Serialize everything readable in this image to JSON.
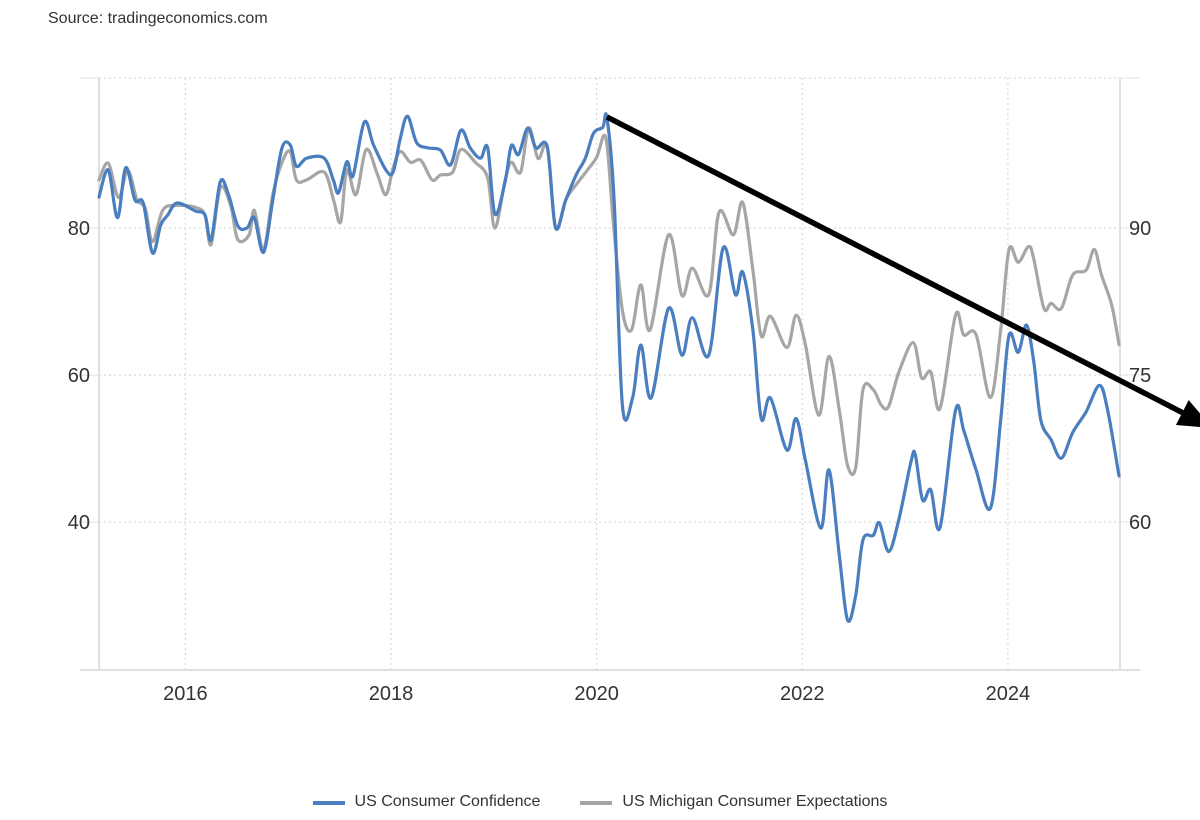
{
  "source": "Source: tradingeconomics.com",
  "chart_data": {
    "type": "line",
    "title": "",
    "xlabel": "",
    "ylabel": "",
    "x_ticks": [
      "2016",
      "2018",
      "2020",
      "2022",
      "2024"
    ],
    "x_tick_values": [
      2016,
      2018,
      2020,
      2022,
      2024
    ],
    "xlim": [
      2015.16,
      2025.09
    ],
    "left_axis": {
      "ticks": [
        "40",
        "60",
        "80"
      ],
      "tick_values": [
        40,
        60,
        80
      ],
      "ylim": [
        19.9,
        100.4
      ]
    },
    "right_axis": {
      "ticks": [
        "60",
        "75",
        "90"
      ],
      "tick_values": [
        60,
        75,
        90
      ],
      "ylim": [
        44.9,
        105.3
      ]
    },
    "grid": true,
    "legend_position": "bottom-center",
    "series": [
      {
        "name": "US Consumer Confidence",
        "axis": "left",
        "color": "#4a7ebf",
        "points": [
          [
            2015.16,
            84.2
          ],
          [
            2015.25,
            87.9
          ],
          [
            2015.34,
            81.4
          ],
          [
            2015.42,
            88.2
          ],
          [
            2015.51,
            83.8
          ],
          [
            2015.59,
            83.4
          ],
          [
            2015.68,
            76.6
          ],
          [
            2015.76,
            80.4
          ],
          [
            2015.83,
            81.8
          ],
          [
            2015.92,
            83.4
          ],
          [
            2016.1,
            82.3
          ],
          [
            2016.19,
            81.8
          ],
          [
            2016.25,
            78.4
          ],
          [
            2016.34,
            86.3
          ],
          [
            2016.42,
            84.5
          ],
          [
            2016.51,
            80.3
          ],
          [
            2016.6,
            80.0
          ],
          [
            2016.67,
            81.4
          ],
          [
            2016.76,
            76.7
          ],
          [
            2016.85,
            83.8
          ],
          [
            2016.94,
            90.9
          ],
          [
            2017.02,
            91.3
          ],
          [
            2017.08,
            88.4
          ],
          [
            2017.18,
            89.5
          ],
          [
            2017.35,
            89.5
          ],
          [
            2017.44,
            86.5
          ],
          [
            2017.49,
            84.8
          ],
          [
            2017.57,
            89.0
          ],
          [
            2017.63,
            87.1
          ],
          [
            2017.74,
            94.4
          ],
          [
            2017.83,
            91.3
          ],
          [
            2017.95,
            87.9
          ],
          [
            2018.02,
            87.6
          ],
          [
            2018.09,
            92.2
          ],
          [
            2018.16,
            95.2
          ],
          [
            2018.25,
            91.6
          ],
          [
            2018.36,
            90.9
          ],
          [
            2018.48,
            90.6
          ],
          [
            2018.58,
            88.6
          ],
          [
            2018.68,
            93.3
          ],
          [
            2018.77,
            90.9
          ],
          [
            2018.87,
            89.5
          ],
          [
            2018.94,
            90.9
          ],
          [
            2019.01,
            81.9
          ],
          [
            2019.11,
            86.3
          ],
          [
            2019.17,
            91.2
          ],
          [
            2019.24,
            90.0
          ],
          [
            2019.33,
            93.6
          ],
          [
            2019.41,
            90.9
          ],
          [
            2019.52,
            91.0
          ],
          [
            2019.6,
            80.1
          ],
          [
            2019.7,
            83.8
          ],
          [
            2019.8,
            87.2
          ],
          [
            2019.89,
            89.5
          ],
          [
            2019.97,
            92.9
          ],
          [
            2020.06,
            93.7
          ],
          [
            2020.1,
            95.0
          ],
          [
            2020.17,
            83.8
          ],
          [
            2020.25,
            55.9
          ],
          [
            2020.35,
            56.9
          ],
          [
            2020.43,
            64.1
          ],
          [
            2020.53,
            56.9
          ],
          [
            2020.7,
            69.1
          ],
          [
            2020.83,
            62.7
          ],
          [
            2020.93,
            67.8
          ],
          [
            2021.09,
            62.7
          ],
          [
            2021.23,
            77.3
          ],
          [
            2021.35,
            70.9
          ],
          [
            2021.42,
            74.0
          ],
          [
            2021.52,
            66.1
          ],
          [
            2021.6,
            54.1
          ],
          [
            2021.69,
            56.9
          ],
          [
            2021.85,
            49.8
          ],
          [
            2021.94,
            54.1
          ],
          [
            2022.03,
            48.4
          ],
          [
            2022.18,
            39.2
          ],
          [
            2022.26,
            47.1
          ],
          [
            2022.36,
            35.5
          ],
          [
            2022.44,
            26.7
          ],
          [
            2022.52,
            30.1
          ],
          [
            2022.59,
            37.6
          ],
          [
            2022.69,
            38.2
          ],
          [
            2022.75,
            39.9
          ],
          [
            2022.84,
            36.0
          ],
          [
            2022.94,
            40.4
          ],
          [
            2023.06,
            48.4
          ],
          [
            2023.1,
            49.1
          ],
          [
            2023.17,
            43.0
          ],
          [
            2023.25,
            44.4
          ],
          [
            2023.34,
            39.3
          ],
          [
            2023.49,
            55.2
          ],
          [
            2023.57,
            52.5
          ],
          [
            2023.69,
            47.1
          ],
          [
            2023.83,
            41.9
          ],
          [
            2023.93,
            53.9
          ],
          [
            2024.01,
            65.4
          ],
          [
            2024.1,
            63.1
          ],
          [
            2024.18,
            66.8
          ],
          [
            2024.25,
            62.0
          ],
          [
            2024.32,
            53.9
          ],
          [
            2024.42,
            51.2
          ],
          [
            2024.52,
            48.7
          ],
          [
            2024.63,
            52.2
          ],
          [
            2024.76,
            55.0
          ],
          [
            2024.89,
            58.6
          ],
          [
            2024.97,
            55.2
          ],
          [
            2025.08,
            46.3
          ]
        ]
      },
      {
        "name": "US Michigan Consumer Expectations",
        "axis": "right",
        "color": "#a6a6a6",
        "points": [
          [
            2015.16,
            94.9
          ],
          [
            2015.25,
            96.6
          ],
          [
            2015.35,
            93.1
          ],
          [
            2015.44,
            95.9
          ],
          [
            2015.53,
            92.9
          ],
          [
            2015.61,
            92.0
          ],
          [
            2015.68,
            88.6
          ],
          [
            2015.78,
            91.8
          ],
          [
            2015.91,
            92.3
          ],
          [
            2016.1,
            92.1
          ],
          [
            2016.19,
            91.3
          ],
          [
            2016.25,
            88.3
          ],
          [
            2016.34,
            94.1
          ],
          [
            2016.44,
            92.3
          ],
          [
            2016.51,
            88.8
          ],
          [
            2016.62,
            89.3
          ],
          [
            2016.67,
            91.8
          ],
          [
            2016.76,
            87.8
          ],
          [
            2016.85,
            93.4
          ],
          [
            2016.94,
            96.7
          ],
          [
            2017.02,
            97.8
          ],
          [
            2017.08,
            94.9
          ],
          [
            2017.18,
            94.9
          ],
          [
            2017.35,
            95.7
          ],
          [
            2017.44,
            92.9
          ],
          [
            2017.51,
            90.6
          ],
          [
            2017.57,
            95.9
          ],
          [
            2017.66,
            93.4
          ],
          [
            2017.76,
            98.0
          ],
          [
            2017.87,
            95.4
          ],
          [
            2017.95,
            93.4
          ],
          [
            2018.02,
            96.1
          ],
          [
            2018.09,
            97.8
          ],
          [
            2018.19,
            96.7
          ],
          [
            2018.29,
            96.9
          ],
          [
            2018.4,
            94.9
          ],
          [
            2018.48,
            95.4
          ],
          [
            2018.6,
            95.7
          ],
          [
            2018.68,
            98.0
          ],
          [
            2018.82,
            96.7
          ],
          [
            2018.94,
            95.1
          ],
          [
            2019.01,
            90.0
          ],
          [
            2019.11,
            94.9
          ],
          [
            2019.17,
            96.7
          ],
          [
            2019.26,
            95.7
          ],
          [
            2019.34,
            100.2
          ],
          [
            2019.43,
            97.1
          ],
          [
            2019.52,
            98.3
          ],
          [
            2019.6,
            90.0
          ],
          [
            2019.7,
            92.9
          ],
          [
            2019.8,
            94.4
          ],
          [
            2019.91,
            95.9
          ],
          [
            2020.0,
            97.2
          ],
          [
            2020.09,
            99.2
          ],
          [
            2020.16,
            90.8
          ],
          [
            2020.25,
            81.6
          ],
          [
            2020.34,
            79.6
          ],
          [
            2020.43,
            84.2
          ],
          [
            2020.52,
            79.6
          ],
          [
            2020.7,
            89.3
          ],
          [
            2020.83,
            83.1
          ],
          [
            2020.93,
            85.9
          ],
          [
            2021.09,
            83.2
          ],
          [
            2021.19,
            91.6
          ],
          [
            2021.33,
            89.3
          ],
          [
            2021.42,
            92.6
          ],
          [
            2021.52,
            85.7
          ],
          [
            2021.6,
            79.0
          ],
          [
            2021.69,
            81.0
          ],
          [
            2021.85,
            77.8
          ],
          [
            2021.94,
            81.1
          ],
          [
            2022.03,
            78.1
          ],
          [
            2022.16,
            70.9
          ],
          [
            2022.26,
            76.9
          ],
          [
            2022.36,
            71.4
          ],
          [
            2022.44,
            65.8
          ],
          [
            2022.52,
            65.6
          ],
          [
            2022.59,
            73.5
          ],
          [
            2022.69,
            73.5
          ],
          [
            2022.77,
            71.9
          ],
          [
            2022.84,
            71.8
          ],
          [
            2022.94,
            75.3
          ],
          [
            2023.08,
            78.3
          ],
          [
            2023.16,
            74.7
          ],
          [
            2023.25,
            75.3
          ],
          [
            2023.34,
            71.6
          ],
          [
            2023.49,
            81.1
          ],
          [
            2023.57,
            79.1
          ],
          [
            2023.69,
            79.1
          ],
          [
            2023.83,
            72.7
          ],
          [
            2023.93,
            79.6
          ],
          [
            2024.01,
            87.8
          ],
          [
            2024.1,
            86.5
          ],
          [
            2024.2,
            88.1
          ],
          [
            2024.25,
            86.9
          ],
          [
            2024.35,
            81.8
          ],
          [
            2024.42,
            82.3
          ],
          [
            2024.52,
            81.8
          ],
          [
            2024.63,
            85.2
          ],
          [
            2024.76,
            85.7
          ],
          [
            2024.84,
            87.8
          ],
          [
            2024.91,
            85.2
          ],
          [
            2025.01,
            82.1
          ],
          [
            2025.08,
            78.1
          ]
        ]
      }
    ],
    "annotations": [
      {
        "type": "arrow",
        "color": "#000000",
        "axis": "left",
        "from": [
          2020.1,
          95.1
        ],
        "to": [
          2025.99,
          52.8
        ]
      }
    ]
  }
}
